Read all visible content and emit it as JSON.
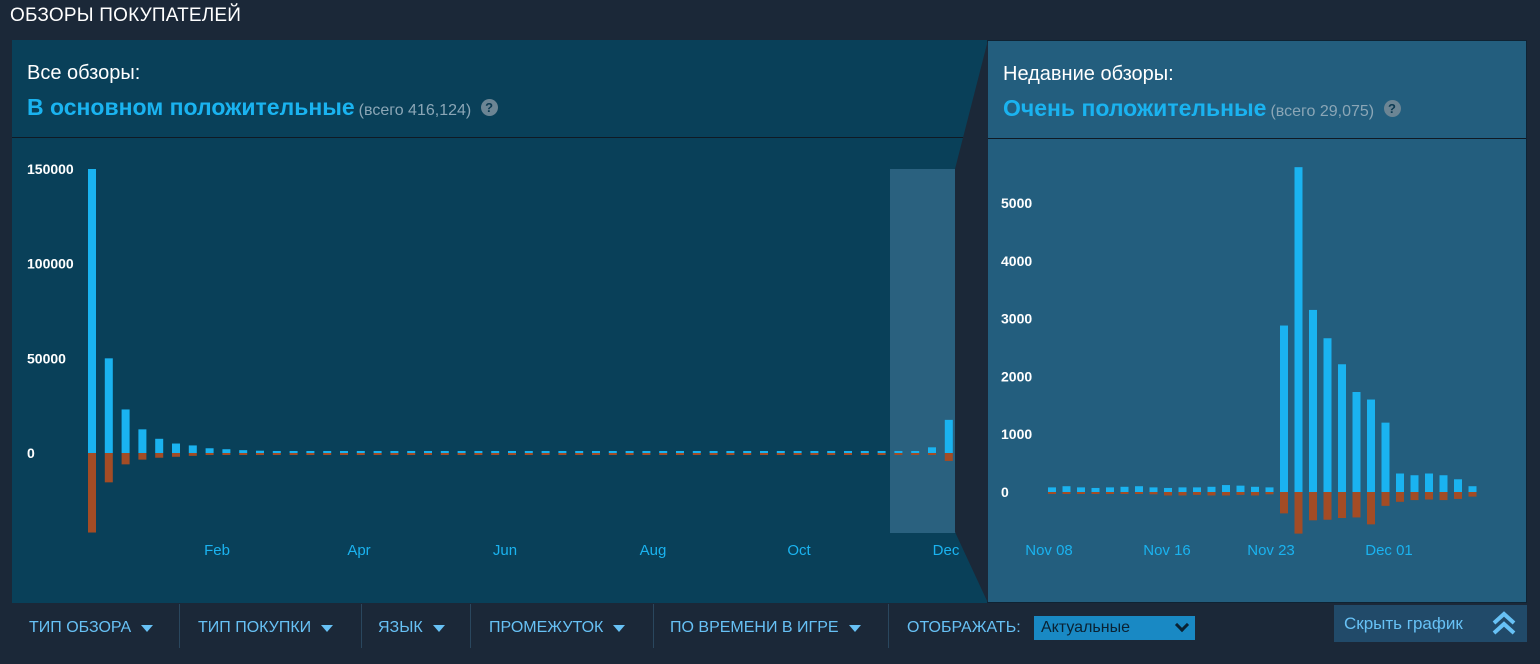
{
  "section_title": "ОБЗОРЫ ПОКУПАТЕЛЕЙ",
  "all_reviews": {
    "label": "Все обзоры:",
    "summary": "В основном положительные",
    "count": "(всего 416,124)",
    "help": "?"
  },
  "recent_reviews": {
    "label": "Недавние обзоры:",
    "summary": "Очень положительные",
    "count": "(всего 29,075)",
    "help": "?"
  },
  "filters": [
    {
      "label": "ТИП ОБЗОРА"
    },
    {
      "label": "ТИП ПОКУПКИ"
    },
    {
      "label": "ЯЗЫК"
    },
    {
      "label": "ПРОМЕЖУТОК"
    },
    {
      "label": "ПО ВРЕМЕНИ В ИГРЕ"
    }
  ],
  "display": {
    "label": "ОТОБРАЖАТЬ:",
    "selected": "Актуальные"
  },
  "hide_button": "Скрыть график",
  "colors": {
    "positive": "#1ab3f0",
    "negative": "#a34c25",
    "axis_text": "#ffffff",
    "date_text": "#1ab3f0"
  },
  "chart_data": [
    {
      "type": "bar",
      "title": "",
      "ylim": [
        -43000,
        160000
      ],
      "yticks": [
        "150000",
        "100000",
        "50000",
        "0"
      ],
      "xticks": [
        "Feb",
        "Apr",
        "Jun",
        "Aug",
        "Oct",
        "Dec"
      ],
      "highlight_range_start_week": 49,
      "series": [
        {
          "values": [
            150000,
            50000,
            23000,
            12500,
            7500,
            5000,
            4000,
            2500,
            2000,
            1500,
            1200,
            1000,
            900,
            800,
            800,
            700,
            700,
            700,
            600,
            600,
            600,
            600,
            500,
            500,
            500,
            500,
            500,
            500,
            500,
            500,
            500,
            500,
            500,
            500,
            500,
            500,
            500,
            500,
            500,
            500,
            500,
            500,
            500,
            500,
            500,
            500,
            500,
            500,
            500,
            700,
            3000,
            17500
          ]
        },
        {
          "values": [
            -42000,
            -15500,
            -6000,
            -3500,
            -2500,
            -2000,
            -1500,
            -1000,
            -800,
            -700,
            -600,
            -600,
            -500,
            -500,
            -500,
            -400,
            -400,
            -400,
            -400,
            -400,
            -300,
            -300,
            -300,
            -300,
            -300,
            -300,
            -300,
            -300,
            -300,
            -300,
            -300,
            -300,
            -300,
            -300,
            -300,
            -300,
            -300,
            -300,
            -300,
            -300,
            -300,
            -300,
            -300,
            -300,
            -300,
            -300,
            -300,
            -300,
            -300,
            -300,
            -400,
            -4200
          ]
        }
      ]
    },
    {
      "type": "bar",
      "title": "",
      "ylim": [
        -800,
        5800
      ],
      "yticks": [
        "5000",
        "4000",
        "3000",
        "2000",
        "1000",
        "0"
      ],
      "xticks": [
        "Nov 08",
        "Nov 16",
        "Nov 23",
        "Dec 01"
      ],
      "series": [
        {
          "values": [
            80,
            100,
            80,
            70,
            80,
            90,
            100,
            80,
            70,
            80,
            80,
            90,
            120,
            110,
            90,
            80,
            2880,
            5620,
            3150,
            2660,
            2210,
            1730,
            1600,
            1200,
            320,
            290,
            320,
            290,
            220,
            100
          ]
        },
        {
          "values": [
            -30,
            -30,
            -30,
            -30,
            -30,
            -30,
            -30,
            -40,
            -60,
            -60,
            -50,
            -60,
            -60,
            -50,
            -60,
            -40,
            -370,
            -720,
            -490,
            -480,
            -450,
            -440,
            -560,
            -240,
            -170,
            -140,
            -130,
            -140,
            -120,
            -80
          ]
        }
      ]
    }
  ]
}
